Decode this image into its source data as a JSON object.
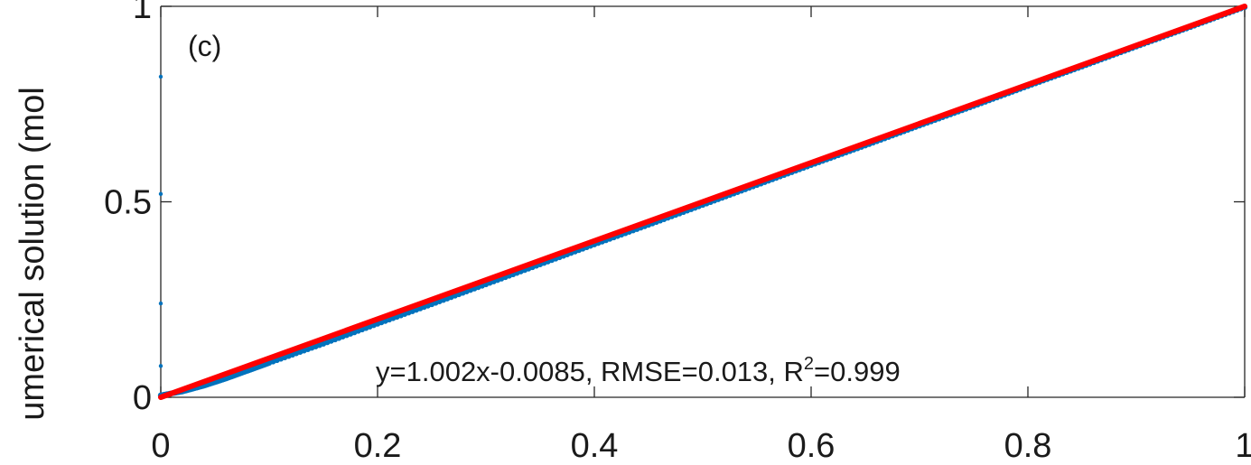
{
  "chart_data": {
    "type": "scatter",
    "panel_label": "(c)",
    "ylabel": "umerical  solution  (mol",
    "xlim": [
      0,
      1
    ],
    "ylim": [
      0,
      1
    ],
    "x_ticks": [
      0,
      0.2,
      0.4,
      0.6,
      0.8,
      1
    ],
    "x_tick_labels": [
      "0",
      "0.2",
      "0.4",
      "0.6",
      "0.8",
      "1"
    ],
    "y_ticks": [
      0,
      0.5,
      1
    ],
    "y_tick_labels": [
      "0",
      "0.5",
      "1"
    ],
    "grid": false,
    "annotation": {
      "prefix": "y=1.002x-0.0085, RMSE=0.013, R",
      "superscript": "2",
      "suffix": "=0.999"
    },
    "series": [
      {
        "type": "scatter",
        "color": "#0072BD",
        "x": [
          0,
          0.02,
          0.04,
          0.06,
          0.08,
          0.1,
          0.15,
          0.2,
          0.25,
          0.3,
          0.35,
          0.4,
          0.45,
          0.5,
          0.55,
          0.6,
          0.65,
          0.7,
          0.75,
          0.8,
          0.85,
          0.9,
          0.95,
          1.0
        ],
        "y": [
          0.005,
          0.015,
          0.03,
          0.048,
          0.068,
          0.088,
          0.137,
          0.188,
          0.238,
          0.289,
          0.34,
          0.391,
          0.441,
          0.492,
          0.543,
          0.594,
          0.644,
          0.695,
          0.745,
          0.796,
          0.846,
          0.897,
          0.947,
          0.998
        ]
      },
      {
        "type": "scatter",
        "color": "#0072BD",
        "x": [
          0,
          0,
          0,
          0
        ],
        "y": [
          0.82,
          0.52,
          0.24,
          0.08
        ]
      },
      {
        "type": "line",
        "color": "#FF0000",
        "x": [
          0,
          1
        ],
        "y": [
          0,
          1
        ]
      }
    ]
  }
}
